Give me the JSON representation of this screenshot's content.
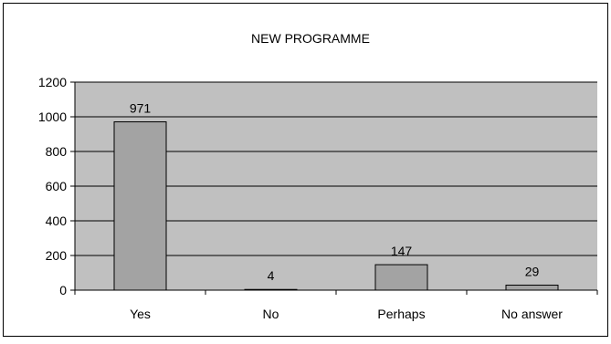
{
  "chart_data": {
    "type": "bar",
    "title": "NEW PROGRAMME",
    "categories": [
      "Yes",
      "No",
      "Perhaps",
      "No answer"
    ],
    "values": [
      971,
      4,
      147,
      29
    ],
    "data_labels": [
      "971",
      "4",
      "147",
      "29"
    ],
    "xlabel": "",
    "ylabel": "",
    "ylim": [
      0,
      1200
    ],
    "yticks": [
      0,
      200,
      400,
      600,
      800,
      1000,
      1200
    ],
    "grid": true,
    "legend": "none"
  },
  "colors": {
    "plot_background": "#c0c0c0",
    "bar_fill": "#a3a3a3",
    "bar_stroke": "#000000",
    "gridline": "#000000",
    "page_background": "#ffffff",
    "frame": "#000000"
  }
}
